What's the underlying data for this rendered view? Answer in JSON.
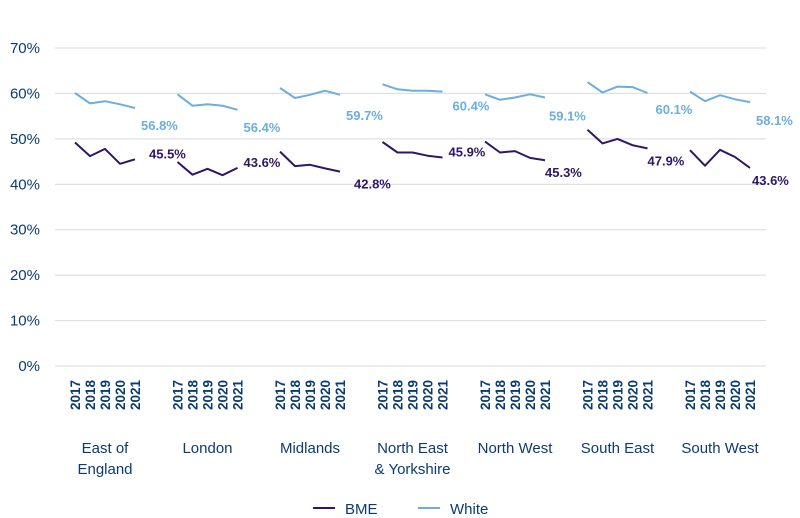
{
  "chart_data": {
    "type": "line",
    "y_ticks": [
      "0%",
      "10%",
      "20%",
      "30%",
      "40%",
      "50%",
      "60%",
      "70%"
    ],
    "ylim": [
      0,
      70
    ],
    "grid": true,
    "legend_position": "bottom",
    "years": [
      "2017",
      "2018",
      "2019",
      "2020",
      "2021"
    ],
    "regions": [
      {
        "name": "East of England",
        "name_lines": [
          "East of",
          "England"
        ],
        "bme": [
          49.2,
          46.2,
          47.8,
          44.5,
          45.5
        ],
        "white": [
          60.1,
          57.8,
          58.3,
          57.6,
          56.8
        ],
        "bme_label": "45.5%",
        "white_label": "56.8%"
      },
      {
        "name": "London",
        "name_lines": [
          "London"
        ],
        "bme": [
          44.9,
          42.1,
          43.4,
          42.0,
          43.6
        ],
        "white": [
          59.8,
          57.3,
          57.6,
          57.3,
          56.4
        ],
        "bme_label": "43.6%",
        "white_label": "56.4%"
      },
      {
        "name": "Midlands",
        "name_lines": [
          "Midlands"
        ],
        "bme": [
          47.2,
          44.0,
          44.3,
          43.5,
          42.8
        ],
        "white": [
          61.2,
          59.0,
          59.7,
          60.6,
          59.7
        ],
        "bme_label": "42.8%",
        "white_label": "59.7%"
      },
      {
        "name": "North East & Yorkshire",
        "name_lines": [
          "North East",
          "& Yorkshire"
        ],
        "bme": [
          49.3,
          47.0,
          47.0,
          46.3,
          45.9
        ],
        "white": [
          62.0,
          60.9,
          60.6,
          60.6,
          60.4
        ],
        "bme_label": "45.9%",
        "white_label": "60.4%"
      },
      {
        "name": "North West",
        "name_lines": [
          "North West"
        ],
        "bme": [
          49.4,
          47.0,
          47.3,
          45.8,
          45.3
        ],
        "white": [
          59.8,
          58.6,
          59.1,
          59.8,
          59.1
        ],
        "bme_label": "45.3%",
        "white_label": "59.1%"
      },
      {
        "name": "South East",
        "name_lines": [
          "South East"
        ],
        "bme": [
          52.0,
          49.0,
          50.0,
          48.6,
          47.9
        ],
        "white": [
          62.5,
          60.2,
          61.5,
          61.4,
          60.1
        ],
        "bme_label": "47.9%",
        "white_label": "60.1%"
      },
      {
        "name": "South West",
        "name_lines": [
          "South West"
        ],
        "bme": [
          47.5,
          44.1,
          47.6,
          46.0,
          43.6
        ],
        "white": [
          60.4,
          58.3,
          59.6,
          58.7,
          58.1
        ],
        "bme_label": "43.6%",
        "white_label": "58.1%"
      }
    ],
    "series": [
      {
        "key": "bme",
        "name": "BME",
        "color": "#2e1766"
      },
      {
        "key": "white",
        "name": "White",
        "color": "#6caee0"
      }
    ]
  }
}
